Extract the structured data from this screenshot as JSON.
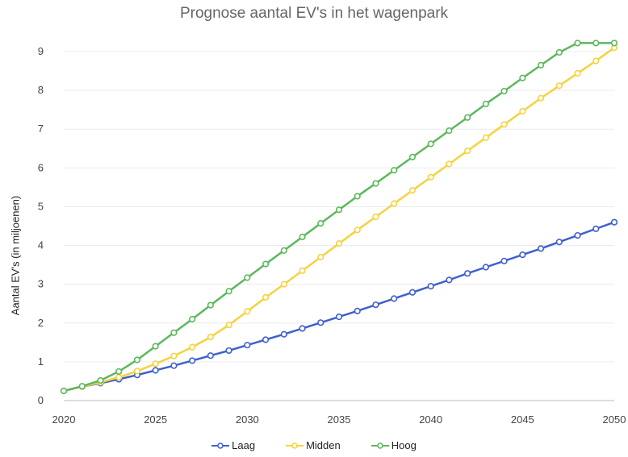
{
  "chart_data": {
    "type": "line",
    "title": "Prognose aantal EV's in het wagenpark",
    "xlabel": "",
    "ylabel": "Aantal EV's (in miljoenen)",
    "xlim": [
      2020,
      2050
    ],
    "ylim": [
      0,
      9
    ],
    "x_ticks": [
      2020,
      2025,
      2030,
      2035,
      2040,
      2045,
      2050
    ],
    "y_ticks": [
      0,
      1,
      2,
      3,
      4,
      5,
      6,
      7,
      8,
      9
    ],
    "grid": true,
    "legend_position": "bottom",
    "x": [
      2020,
      2021,
      2022,
      2023,
      2024,
      2025,
      2026,
      2027,
      2028,
      2029,
      2030,
      2031,
      2032,
      2033,
      2034,
      2035,
      2036,
      2037,
      2038,
      2039,
      2040,
      2041,
      2042,
      2043,
      2044,
      2045,
      2046,
      2047,
      2048,
      2049,
      2050
    ],
    "series": [
      {
        "name": "Laag",
        "color": "#3f5fcf",
        "values": [
          0.25,
          0.36,
          0.45,
          0.55,
          0.66,
          0.78,
          0.9,
          1.03,
          1.16,
          1.29,
          1.43,
          1.57,
          1.71,
          1.86,
          2.01,
          2.16,
          2.31,
          2.47,
          2.63,
          2.79,
          2.95,
          3.11,
          3.28,
          3.44,
          3.6,
          3.76,
          3.92,
          4.09,
          4.26,
          4.43,
          4.6
        ]
      },
      {
        "name": "Midden",
        "color": "#f5d33f",
        "values": [
          0.25,
          0.36,
          0.47,
          0.6,
          0.76,
          0.95,
          1.15,
          1.38,
          1.64,
          1.95,
          2.3,
          2.66,
          3.0,
          3.35,
          3.7,
          4.05,
          4.4,
          4.74,
          5.08,
          5.42,
          5.76,
          6.1,
          6.44,
          6.78,
          7.12,
          7.46,
          7.8,
          8.12,
          8.44,
          8.76,
          9.1
        ]
      },
      {
        "name": "Hoog",
        "color": "#5cb85c",
        "values": [
          0.25,
          0.37,
          0.52,
          0.75,
          1.05,
          1.4,
          1.75,
          2.1,
          2.46,
          2.82,
          3.17,
          3.52,
          3.87,
          4.22,
          4.57,
          4.92,
          5.27,
          5.6,
          5.94,
          6.28,
          6.62,
          6.96,
          7.3,
          7.65,
          7.98,
          8.32,
          8.65,
          8.98,
          9.22,
          9.22,
          9.22
        ]
      }
    ]
  }
}
